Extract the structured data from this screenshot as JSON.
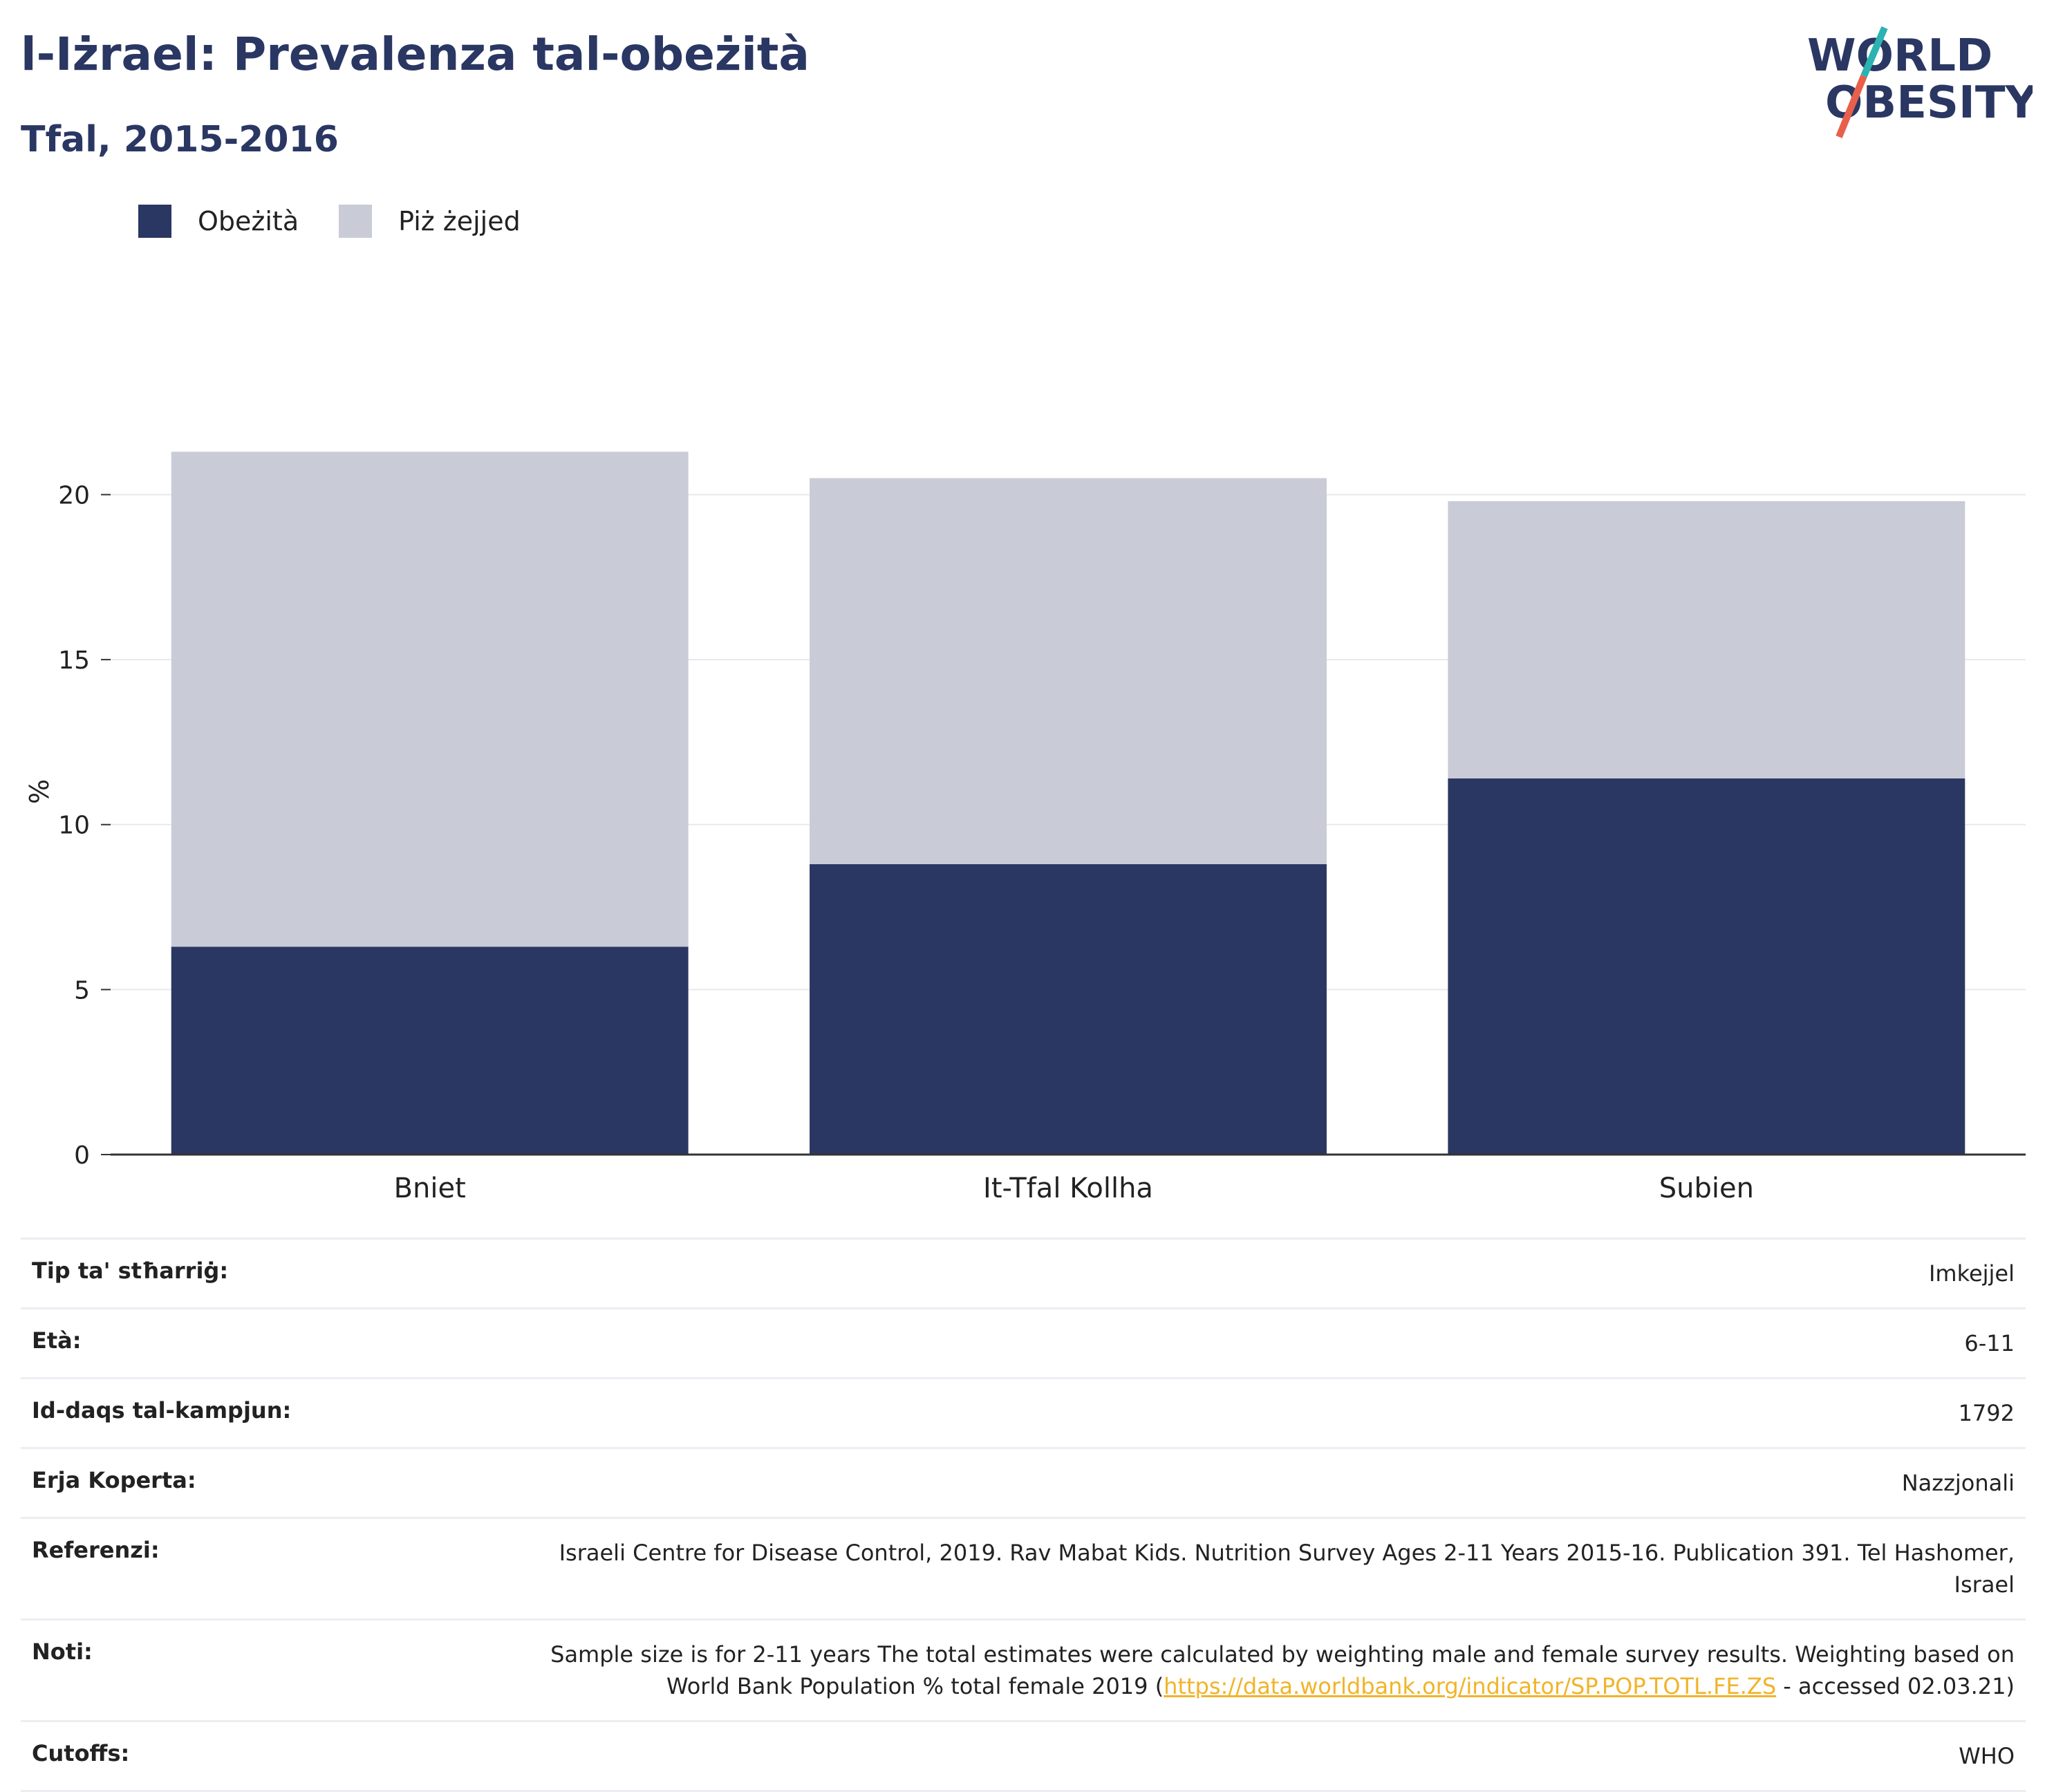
{
  "header": {
    "title": "l-Iżrael: Prevalenza tal-obeżità",
    "subtitle": "Tfal, 2015-2016"
  },
  "logo": {
    "line1": "WORLD",
    "line2": "OBESITY"
  },
  "colors": {
    "obesity": "#2a3763",
    "overweight": "#c9cbd7",
    "axis": "#333333",
    "grid": "#e8e8ee",
    "link": "#f0b429"
  },
  "chart_data": {
    "type": "bar",
    "stacked": true,
    "categories": [
      "Bniet",
      "It-Tfal Kollha",
      "Subien"
    ],
    "series": [
      {
        "name": "Obeżità",
        "values": [
          6.3,
          8.8,
          11.4
        ]
      },
      {
        "name": "Piż żejjed",
        "values": [
          15.0,
          11.7,
          8.4
        ]
      }
    ],
    "ylabel": "%",
    "ylim": [
      0,
      22
    ],
    "yticks": [
      0,
      5,
      10,
      15,
      20
    ],
    "grid": true,
    "legend_position": "top-left"
  },
  "meta": {
    "rows": [
      {
        "label": "Tip ta' stħarriġ:",
        "value": "Imkejjel"
      },
      {
        "label": "Età:",
        "value": "6-11"
      },
      {
        "label": "Id-daqs tal-kampjun:",
        "value": "1792"
      },
      {
        "label": "Erja Koperta:",
        "value": "Nazzjonali"
      },
      {
        "label": "Referenzi:",
        "value": "Israeli Centre for Disease Control, 2019. Rav Mabat Kids. Nutrition Survey Ages 2-11 Years 2015-16. Publication 391. Tel Hashomer, Israel"
      }
    ],
    "notes": {
      "label": "Noti:",
      "text_before": "Sample size is for 2-11 years The total estimates were calculated by weighting male and female survey results. Weighting based on World Bank Population % total female 2019 (",
      "link": "https://data.worldbank.org/indicator/SP.POP.TOTL.FE.ZS",
      "text_after": " - accessed 02.03.21)"
    },
    "cutoffs": {
      "label": "Cutoffs:",
      "value": "WHO"
    }
  }
}
